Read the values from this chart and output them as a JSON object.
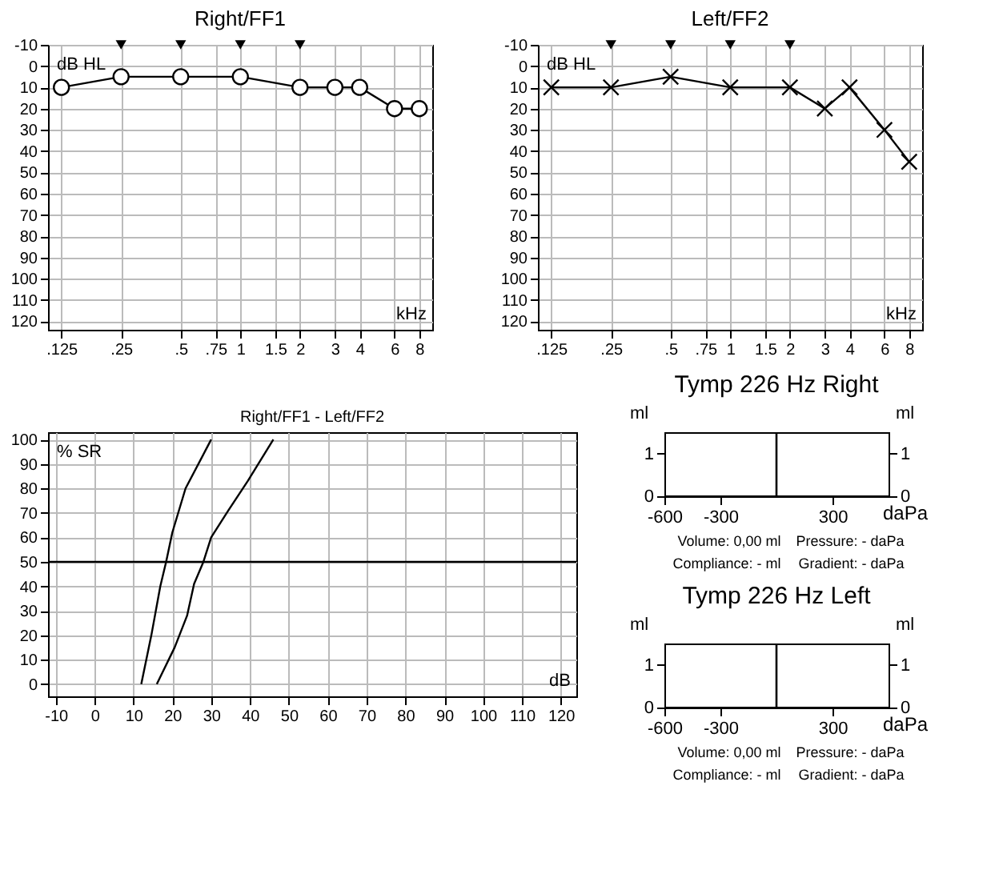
{
  "chart_data": [
    {
      "type": "line",
      "title": "Right/FF1",
      "xlabel": "kHz",
      "ylabel": "dB HL",
      "log": "x",
      "xlim": [
        0.107,
        9.3
      ],
      "xticks": [
        {
          "value": 0.125,
          "label": ".125"
        },
        {
          "value": 0.25,
          "label": ".25"
        },
        {
          "value": 0.5,
          "label": ".5"
        },
        {
          "value": 0.75,
          "label": ".75"
        },
        1,
        1.5,
        2,
        3,
        4,
        6,
        8
      ],
      "ylim": [
        124,
        -10
      ],
      "yticks": [
        -10,
        0,
        10,
        20,
        30,
        40,
        50,
        60,
        70,
        80,
        90,
        100,
        110,
        120
      ],
      "grid": true,
      "line_style": "solid",
      "x": [
        0.125,
        0.25,
        0.5,
        1,
        2,
        3,
        4,
        6,
        8
      ],
      "series": [
        {
          "color": "#000000",
          "marker": "circle",
          "values": [
            10,
            5,
            5,
            5,
            10,
            10,
            10,
            20,
            20
          ]
        },
        {
          "type": "scatter",
          "marker": "triangle",
          "color": "#000000",
          "x": [
            0.25,
            0.5,
            1,
            2
          ],
          "values": [
            -10,
            -10,
            -10,
            -10
          ]
        }
      ]
    },
    {
      "type": "line",
      "title": "Left/FF2",
      "xlabel": "kHz",
      "ylabel": "dB HL",
      "log": "x",
      "xlim": [
        0.107,
        9.3
      ],
      "xticks": [
        {
          "value": 0.125,
          "label": ".125"
        },
        {
          "value": 0.25,
          "label": ".25"
        },
        {
          "value": 0.5,
          "label": ".5"
        },
        {
          "value": 0.75,
          "label": ".75"
        },
        1,
        1.5,
        2,
        3,
        4,
        6,
        8
      ],
      "ylim": [
        124,
        -10
      ],
      "yticks": [
        -10,
        0,
        10,
        20,
        30,
        40,
        50,
        60,
        70,
        80,
        90,
        100,
        110,
        120
      ],
      "grid": true,
      "line_style": "solid",
      "x": [
        0.125,
        0.25,
        0.5,
        1,
        2,
        3,
        4,
        6,
        8
      ],
      "series": [
        {
          "color": "#000000",
          "marker": "cross",
          "values": [
            10,
            10,
            5,
            10,
            10,
            20,
            10,
            30,
            45
          ]
        },
        {
          "type": "scatter",
          "marker": "triangle",
          "color": "#000000",
          "x": [
            0.25,
            0.5,
            1,
            2
          ],
          "values": [
            -10,
            -10,
            -10,
            -10
          ]
        }
      ]
    },
    {
      "type": "line",
      "title": "Right/FF1 - Left/FF2",
      "xlabel": "dB",
      "ylabel": "% SR",
      "xlim": [
        -12,
        124
      ],
      "xticks": [
        -10,
        0,
        10,
        20,
        30,
        40,
        50,
        60,
        70,
        80,
        90,
        100,
        110,
        120
      ],
      "ylim": [
        -5,
        103
      ],
      "yticks": [
        0,
        10,
        20,
        30,
        40,
        50,
        60,
        70,
        80,
        90,
        100
      ],
      "grid": true,
      "line_style": "solid",
      "ref_lines": [
        {
          "axis": "y",
          "value": 50,
          "color": "#000000"
        }
      ],
      "series": [
        {
          "color": "#000000",
          "x": [
            12,
            14.6,
            16.9,
            18.4,
            20,
            23.4,
            30
          ],
          "values": [
            0,
            20,
            40,
            50,
            62,
            80,
            100
          ]
        },
        {
          "color": "#000000",
          "x": [
            16,
            20.6,
            23.8,
            25.6,
            28,
            30,
            34.4,
            39.4,
            46
          ],
          "values": [
            0,
            15,
            28,
            41,
            50,
            60,
            71,
            83,
            100
          ]
        }
      ]
    },
    {
      "type": "line",
      "title": "Tymp 226 Hz Right",
      "xlabel": "daPa",
      "ylabel": "ml",
      "y2label": "ml",
      "xlim": [
        -600,
        600
      ],
      "xticks": [
        -600,
        -300,
        300
      ],
      "ylim": [
        0,
        1.5
      ],
      "yticks": [
        0,
        1
      ],
      "y2lim": [
        0,
        1.5
      ],
      "y2ticks": [
        0,
        1
      ],
      "ref_lines": [
        {
          "axis": "x",
          "value": 0,
          "color": "#000000"
        }
      ],
      "annotations": [
        "Volume: 0,00 ml",
        "Pressure: - daPa",
        "Compliance: - ml",
        "Gradient: - daPa"
      ]
    },
    {
      "type": "line",
      "title": "Tymp 226 Hz Left",
      "xlabel": "daPa",
      "ylabel": "ml",
      "y2label": "ml",
      "xlim": [
        -600,
        600
      ],
      "xticks": [
        -600,
        -300,
        300
      ],
      "ylim": [
        0,
        1.5
      ],
      "yticks": [
        0,
        1
      ],
      "y2lim": [
        0,
        1.5
      ],
      "y2ticks": [
        0,
        1
      ],
      "ref_lines": [
        {
          "axis": "x",
          "value": 0,
          "color": "#000000"
        }
      ],
      "annotations": [
        "Volume: 0,00 ml",
        "Pressure: - daPa",
        "Compliance: - ml",
        "Gradient: - daPa"
      ]
    }
  ]
}
